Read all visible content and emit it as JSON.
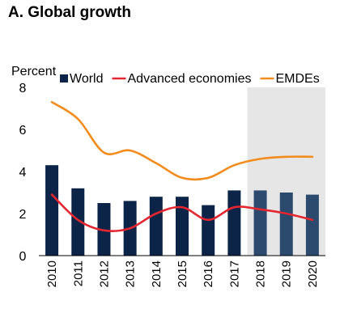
{
  "chart_data": {
    "type": "bar+line",
    "title": "A. Global growth",
    "unit_label": "Percent",
    "categories": [
      "2010",
      "2011",
      "2012",
      "2013",
      "2014",
      "2015",
      "2016",
      "2017",
      "2018",
      "2019",
      "2020"
    ],
    "ylim": [
      0,
      8
    ],
    "yticks": [
      0,
      2,
      4,
      6,
      8
    ],
    "projection_start_index": 8,
    "series": [
      {
        "name": "World",
        "kind": "bar",
        "color": "#0b2447",
        "values": [
          4.3,
          3.2,
          2.5,
          2.6,
          2.8,
          2.8,
          2.4,
          3.1,
          3.1,
          3.0,
          2.9
        ]
      },
      {
        "name": "Advanced economies",
        "kind": "line",
        "color": "#e3262f",
        "values": [
          2.9,
          1.7,
          1.2,
          1.3,
          2.0,
          2.3,
          1.7,
          2.3,
          2.2,
          2.0,
          1.7
        ]
      },
      {
        "name": "EMDEs",
        "kind": "line",
        "color": "#f28c1c",
        "values": [
          7.3,
          6.5,
          4.9,
          5.0,
          4.4,
          3.7,
          3.7,
          4.3,
          4.6,
          4.7,
          4.7
        ]
      }
    ],
    "legend_position": "top",
    "shading_color": "#e6e6e6",
    "projection_bar_color": "#2c4a6e"
  }
}
